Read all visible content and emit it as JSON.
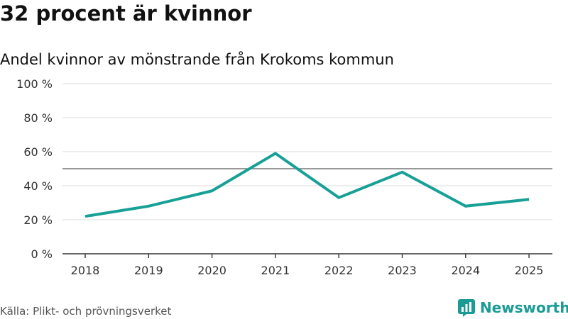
{
  "header": {
    "title": "32 procent är kvinnor",
    "subtitle": "Andel kvinnor av mönstrande från Krokoms kommun"
  },
  "footer": {
    "source": "Källa: Plikt- och prövningsverket",
    "brand": "Newsworthy"
  },
  "colors": {
    "line": "#17a096",
    "brand": "#1a9b95"
  },
  "chart_data": {
    "type": "line",
    "title": "32 procent är kvinnor",
    "subtitle": "Andel kvinnor av mönstrande från Krokoms kommun",
    "xlabel": "",
    "ylabel": "",
    "categories": [
      "2018",
      "2019",
      "2020",
      "2021",
      "2022",
      "2023",
      "2024",
      "2025"
    ],
    "series": [
      {
        "name": "Andel kvinnor",
        "values": [
          22,
          28,
          37,
          59,
          33,
          48,
          28,
          32
        ]
      }
    ],
    "ylim": [
      0,
      100
    ],
    "yticks": [
      0,
      20,
      40,
      60,
      80,
      100
    ],
    "ytick_labels": [
      "0 %",
      "20 %",
      "40 %",
      "60 %",
      "80 %",
      "100 %"
    ],
    "reference_line": 50,
    "grid": true,
    "source": "Källa: Plikt- och prövningsverket"
  }
}
